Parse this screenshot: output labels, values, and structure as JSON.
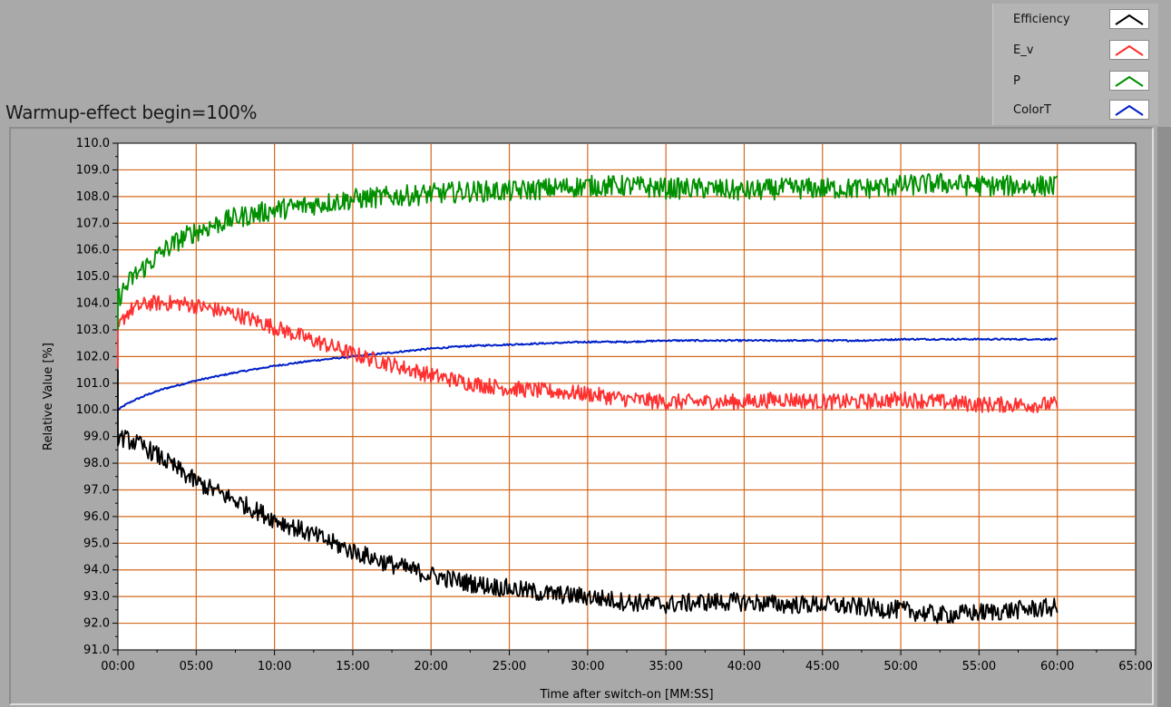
{
  "header": {
    "title": "Warmup-effect begin=100%"
  },
  "legend": [
    {
      "label": "Efficiency",
      "color": "#000000"
    },
    {
      "label": "E_v",
      "color": "#ff3030"
    },
    {
      "label": "P",
      "color": "#009000"
    },
    {
      "label": "ColorT",
      "color": "#0020c8"
    }
  ],
  "chart_data": {
    "type": "line",
    "title": "Warmup-effect begin=100%",
    "xlabel": "Time after switch-on [MM:SS]",
    "ylabel": "Relative Value [%]",
    "x_unit": "minutes",
    "xlim": [
      0,
      65
    ],
    "ylim": [
      91,
      110
    ],
    "x_ticks": [
      "00:00",
      "05:00",
      "10:00",
      "15:00",
      "20:00",
      "25:00",
      "30:00",
      "35:00",
      "40:00",
      "45:00",
      "50:00",
      "55:00",
      "60:00",
      "65:00"
    ],
    "y_ticks": [
      "91.0",
      "92.0",
      "93.0",
      "94.0",
      "95.0",
      "96.0",
      "97.0",
      "98.0",
      "99.0",
      "100.0",
      "101.0",
      "102.0",
      "103.0",
      "104.0",
      "105.0",
      "106.0",
      "107.0",
      "108.0",
      "109.0",
      "110.0"
    ],
    "grid": true,
    "legend_position": "top-right",
    "x": [
      0,
      0.5,
      1,
      2,
      3,
      4,
      5,
      7.5,
      10,
      12.5,
      15,
      17.5,
      20,
      22.5,
      25,
      27.5,
      30,
      32.5,
      35,
      37.5,
      40,
      42.5,
      45,
      47.5,
      50,
      52.5,
      55,
      57.5,
      60
    ],
    "series": [
      {
        "name": "Efficiency",
        "color": "#000000",
        "noise": 0.35,
        "values": [
          99.0,
          98.9,
          98.8,
          98.5,
          98.1,
          97.7,
          97.3,
          96.6,
          95.9,
          95.3,
          94.7,
          94.2,
          93.8,
          93.5,
          93.3,
          93.1,
          93.0,
          92.8,
          92.7,
          92.8,
          92.8,
          92.7,
          92.7,
          92.6,
          92.5,
          92.3,
          92.4,
          92.5,
          92.6
        ]
      },
      {
        "name": "E_v",
        "color": "#ff3030",
        "noise": 0.3,
        "values": [
          103.0,
          103.6,
          103.8,
          104.0,
          104.0,
          104.0,
          103.9,
          103.6,
          103.1,
          102.6,
          102.1,
          101.7,
          101.3,
          101.0,
          100.8,
          100.7,
          100.6,
          100.4,
          100.3,
          100.3,
          100.3,
          100.4,
          100.3,
          100.3,
          100.4,
          100.3,
          100.2,
          100.2,
          100.2
        ]
      },
      {
        "name": "P",
        "color": "#009000",
        "noise": 0.4,
        "values": [
          104.2,
          104.6,
          105.0,
          105.5,
          106.0,
          106.4,
          106.7,
          107.2,
          107.5,
          107.7,
          107.9,
          108.0,
          108.1,
          108.2,
          108.2,
          108.3,
          108.4,
          108.4,
          108.3,
          108.3,
          108.2,
          108.3,
          108.3,
          108.3,
          108.4,
          108.5,
          108.4,
          108.4,
          108.4
        ]
      },
      {
        "name": "ColorT",
        "color": "#0020c8",
        "noise": 0.03,
        "values": [
          100.0,
          100.2,
          100.35,
          100.6,
          100.8,
          100.95,
          101.1,
          101.4,
          101.65,
          101.85,
          102.0,
          102.15,
          102.3,
          102.4,
          102.45,
          102.5,
          102.55,
          102.55,
          102.6,
          102.6,
          102.6,
          102.6,
          102.6,
          102.6,
          102.65,
          102.65,
          102.65,
          102.65,
          102.65
        ]
      }
    ]
  }
}
